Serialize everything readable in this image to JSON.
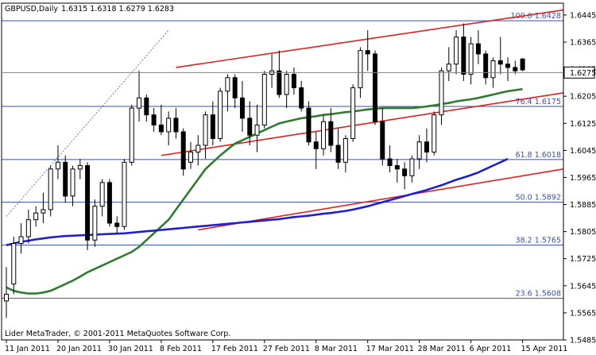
{
  "chart_data": {
    "type": "candlestick",
    "symbol": "GBPUSD,Daily",
    "ohlc_header": "1.6315 1.6318 1.6279 1.6283",
    "copyright": "Lider MetaTrader, © 2001-2011 MetaQuotes Software Corp.",
    "current_price_label": "1.6275",
    "ylim": [
      1.5485,
      1.648
    ],
    "y_ticks": [
      "1.6445",
      "1.6365",
      "1.6285",
      "1.6205",
      "1.6125",
      "1.6045",
      "1.5965",
      "1.5885",
      "1.5805",
      "1.5725",
      "1.5645",
      "1.5565",
      "1.5485"
    ],
    "x_ticks": [
      {
        "label": "11 Jan 2011",
        "bar": 0
      },
      {
        "label": "20 Jan 2011",
        "bar": 7
      },
      {
        "label": "30 Jan 2011",
        "bar": 14
      },
      {
        "label": "8 Feb 2011",
        "bar": 21
      },
      {
        "label": "17 Feb 2011",
        "bar": 28
      },
      {
        "label": "27 Feb 2011",
        "bar": 35
      },
      {
        "label": "8 Mar 2011",
        "bar": 42
      },
      {
        "label": "17 Mar 2011",
        "bar": 49
      },
      {
        "label": "28 Mar 2011",
        "bar": 56
      },
      {
        "label": "6 Apr 2011",
        "bar": 63
      },
      {
        "label": "15 Apr 2011",
        "bar": 70
      }
    ],
    "fib_levels": [
      {
        "label": "100.0 1.6428",
        "value": 1.6428
      },
      {
        "label": "76.4 1.6175",
        "value": 1.6175
      },
      {
        "label": "61.8 1.6018",
        "value": 1.6018
      },
      {
        "label": "50.0 1.5892",
        "value": 1.5892
      },
      {
        "label": "38.2 1.5765",
        "value": 1.5765
      },
      {
        "label": "23.6 1.5608",
        "value": 1.5608
      }
    ],
    "candles": [
      [
        1.56,
        1.57,
        1.555,
        1.562
      ],
      [
        1.565,
        1.579,
        1.562,
        1.577
      ],
      [
        1.577,
        1.583,
        1.574,
        1.579
      ],
      [
        1.579,
        1.587,
        1.577,
        1.584
      ],
      [
        1.584,
        1.588,
        1.582,
        1.586
      ],
      [
        1.586,
        1.592,
        1.583,
        1.587
      ],
      [
        1.587,
        1.6,
        1.585,
        1.599
      ],
      [
        1.599,
        1.606,
        1.596,
        1.601
      ],
      [
        1.601,
        1.603,
        1.589,
        1.591
      ],
      [
        1.591,
        1.6,
        1.588,
        1.599
      ],
      [
        1.599,
        1.602,
        1.596,
        1.6
      ],
      [
        1.6,
        1.601,
        1.575,
        1.578
      ],
      [
        1.578,
        1.59,
        1.576,
        1.588
      ],
      [
        1.588,
        1.596,
        1.585,
        1.595
      ],
      [
        1.595,
        1.596,
        1.582,
        1.583
      ],
      [
        1.583,
        1.585,
        1.58,
        1.582
      ],
      [
        1.582,
        1.602,
        1.581,
        1.601
      ],
      [
        1.601,
        1.618,
        1.6,
        1.617
      ],
      [
        1.617,
        1.628,
        1.613,
        1.62
      ],
      [
        1.62,
        1.621,
        1.613,
        1.615
      ],
      [
        1.615,
        1.617,
        1.61,
        1.612
      ],
      [
        1.612,
        1.618,
        1.609,
        1.61
      ],
      [
        1.61,
        1.616,
        1.606,
        1.614
      ],
      [
        1.614,
        1.617,
        1.608,
        1.61
      ],
      [
        1.61,
        1.611,
        1.597,
        1.599
      ],
      [
        1.601,
        1.607,
        1.599,
        1.604
      ],
      [
        1.604,
        1.609,
        1.6,
        1.606
      ],
      [
        1.606,
        1.616,
        1.602,
        1.615
      ],
      [
        1.615,
        1.619,
        1.606,
        1.608
      ],
      [
        1.608,
        1.623,
        1.607,
        1.622
      ],
      [
        1.622,
        1.627,
        1.616,
        1.626
      ],
      [
        1.626,
        1.627,
        1.617,
        1.62
      ],
      [
        1.62,
        1.625,
        1.61,
        1.614
      ],
      [
        1.614,
        1.619,
        1.606,
        1.609
      ],
      [
        1.609,
        1.618,
        1.604,
        1.612
      ],
      [
        1.612,
        1.628,
        1.611,
        1.627
      ],
      [
        1.627,
        1.633,
        1.623,
        1.628
      ],
      [
        1.628,
        1.634,
        1.62,
        1.621
      ],
      [
        1.621,
        1.628,
        1.617,
        1.627
      ],
      [
        1.627,
        1.629,
        1.621,
        1.623
      ],
      [
        1.623,
        1.625,
        1.616,
        1.617
      ],
      [
        1.617,
        1.619,
        1.606,
        1.607
      ],
      [
        1.607,
        1.61,
        1.599,
        1.605
      ],
      [
        1.605,
        1.615,
        1.603,
        1.613
      ],
      [
        1.613,
        1.617,
        1.604,
        1.606
      ],
      [
        1.606,
        1.611,
        1.599,
        1.601
      ],
      [
        1.601,
        1.609,
        1.598,
        1.608
      ],
      [
        1.608,
        1.624,
        1.607,
        1.623
      ],
      [
        1.623,
        1.635,
        1.62,
        1.634
      ],
      [
        1.634,
        1.64,
        1.628,
        1.633
      ],
      [
        1.633,
        1.634,
        1.612,
        1.613
      ],
      [
        1.613,
        1.617,
        1.6,
        1.602
      ],
      [
        1.602,
        1.606,
        1.598,
        1.6
      ],
      [
        1.6,
        1.602,
        1.595,
        1.599
      ],
      [
        1.599,
        1.601,
        1.593,
        1.597
      ],
      [
        1.597,
        1.603,
        1.595,
        1.602
      ],
      [
        1.602,
        1.609,
        1.599,
        1.607
      ],
      [
        1.607,
        1.611,
        1.601,
        1.604
      ],
      [
        1.604,
        1.616,
        1.603,
        1.615
      ],
      [
        1.615,
        1.629,
        1.612,
        1.628
      ],
      [
        1.628,
        1.635,
        1.625,
        1.63
      ],
      [
        1.63,
        1.64,
        1.627,
        1.638
      ],
      [
        1.638,
        1.642,
        1.625,
        1.627
      ],
      [
        1.627,
        1.638,
        1.624,
        1.636
      ],
      [
        1.636,
        1.64,
        1.63,
        1.633
      ],
      [
        1.633,
        1.634,
        1.624,
        1.626
      ],
      [
        1.626,
        1.632,
        1.623,
        1.631
      ],
      [
        1.631,
        1.638,
        1.627,
        1.63
      ],
      [
        1.63,
        1.632,
        1.625,
        1.629
      ],
      [
        1.629,
        1.631,
        1.627,
        1.628
      ],
      [
        1.6315,
        1.6318,
        1.6279,
        1.6283
      ]
    ],
    "series": [
      {
        "name": "",
        "color": "#2e7d2e",
        "values": [
          1.564,
          1.563,
          1.5625,
          1.5622,
          1.5622,
          1.5625,
          1.563,
          1.564,
          1.565,
          1.566,
          1.5672,
          1.5685,
          1.5695,
          1.5705,
          1.5715,
          1.5725,
          1.5735,
          1.5745,
          1.576,
          1.578,
          1.58,
          1.582,
          1.584,
          1.587,
          1.59,
          1.593,
          1.596,
          1.599,
          1.601,
          1.603,
          1.6048,
          1.6065,
          1.6075,
          1.6085,
          1.6095,
          1.6105,
          1.6115,
          1.6125,
          1.613,
          1.6135,
          1.614,
          1.6143,
          1.6146,
          1.615,
          1.6152,
          1.6155,
          1.6158,
          1.616,
          1.6163,
          1.6166,
          1.6168,
          1.617,
          1.617,
          1.617,
          1.617,
          1.617,
          1.6172,
          1.6175,
          1.6178,
          1.6182,
          1.6185,
          1.619,
          1.6193,
          1.6196,
          1.62,
          1.6205,
          1.621,
          1.6215,
          1.622,
          1.6223,
          1.6226
        ]
      },
      {
        "name": "",
        "color": "#1f1fd0",
        "values": [
          1.5765,
          1.577,
          1.5775,
          1.5778,
          1.5782,
          1.5785,
          1.5788,
          1.579,
          1.5792,
          1.5793,
          1.5794,
          1.5795,
          1.5796,
          1.5797,
          1.5798,
          1.5799,
          1.58,
          1.5802,
          1.5804,
          1.5806,
          1.5808,
          1.581,
          1.5812,
          1.5814,
          1.5816,
          1.5818,
          1.582,
          1.5822,
          1.5824,
          1.5826,
          1.5828,
          1.583,
          1.5832,
          1.5834,
          1.5836,
          1.5838,
          1.584,
          1.5842,
          1.5845,
          1.5848,
          1.585,
          1.5852,
          1.5855,
          1.5858,
          1.586,
          1.5863,
          1.5866,
          1.587,
          1.5875,
          1.588,
          1.5886,
          1.5892,
          1.5898,
          1.5904,
          1.591,
          1.5916,
          1.5922,
          1.5928,
          1.5935,
          1.5942,
          1.595,
          1.5958,
          1.5965,
          1.5972,
          1.598,
          1.599,
          1.6,
          1.601,
          1.602
        ]
      }
    ],
    "trendlines": [
      {
        "color": "#e02020",
        "points": [
          [
            23,
            1.629
          ],
          [
            102,
            1.646
          ]
        ]
      },
      {
        "color": "#e02020",
        "points": [
          [
            21,
            1.603
          ],
          [
            102,
            1.6215
          ]
        ]
      },
      {
        "color": "#e02020",
        "points": [
          [
            26,
            1.581
          ],
          [
            102,
            1.599
          ]
        ]
      },
      {
        "color": "#4f7fd0",
        "dashed": true,
        "points": [
          [
            0,
            1.585
          ],
          [
            22,
            1.64
          ]
        ]
      }
    ]
  }
}
